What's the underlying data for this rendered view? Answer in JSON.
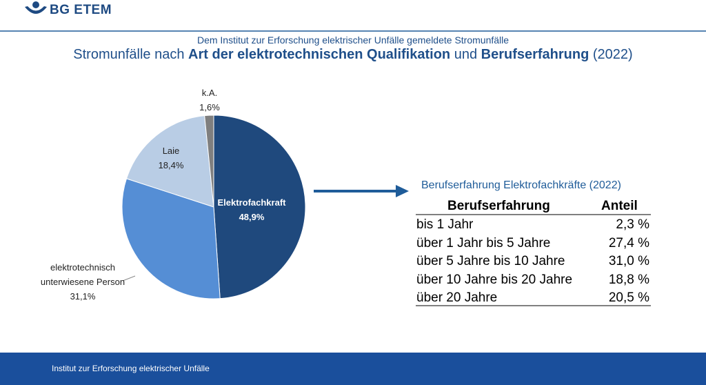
{
  "header": {
    "logo": "BG ETEM",
    "subtitle": "Dem Institut zur Erforschung elektrischer Unfälle gemeldete Stromunfälle",
    "title_parts": [
      {
        "text": "Stromunfälle nach ",
        "bold": false
      },
      {
        "text": "Art der elektrotechnischen Qualifikation",
        "bold": true
      },
      {
        "text": " und ",
        "bold": false
      },
      {
        "text": "Berufserfahrung",
        "bold": true
      },
      {
        "text": " (2022)",
        "bold": false
      }
    ]
  },
  "chart_data": {
    "type": "pie",
    "categories": [
      "Elektrofachkraft",
      "elektrotechnisch\nunterwiesene Person",
      "Laie",
      "k.A."
    ],
    "values": [
      48.9,
      31.1,
      18.4,
      1.6
    ],
    "value_labels": [
      "48,9%",
      "31,1%",
      "18,4%",
      "1,6%"
    ],
    "colors": [
      "#1f497d",
      "#558ed5",
      "#b9cde5",
      "#7f7f7f"
    ]
  },
  "table": {
    "title": "Berufserfahrung Elektrofachkräfte (2022)",
    "header": [
      "Berufserfahrung",
      "Anteil"
    ],
    "rows": [
      [
        "bis 1 Jahr",
        "2,3 %"
      ],
      [
        "über 1 Jahr bis 5 Jahre",
        "27,4 %"
      ],
      [
        "über 5 Jahre bis 10 Jahre",
        "31,0 %"
      ],
      [
        "über 10 Jahre bis 20 Jahre",
        "18,8 %"
      ],
      [
        "über 20 Jahre",
        "20,5 %"
      ]
    ]
  },
  "footer": {
    "text": "Institut zur Erforschung elektrischer Unfälle"
  }
}
